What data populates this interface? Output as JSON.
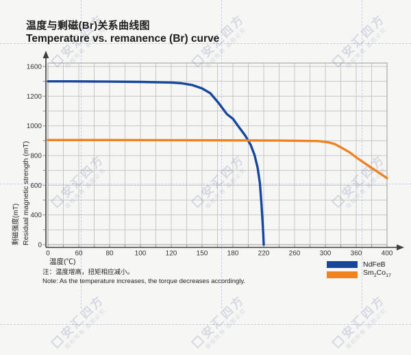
{
  "page": {
    "background": "#f6f6f4"
  },
  "title": {
    "zh": "温度与剩磁(Br)关系曲线图",
    "en": "Temperature vs. remanence (Br) curve"
  },
  "chart_data": {
    "type": "line",
    "title_zh": "温度与剩磁(Br)关系曲线图",
    "title_en": "Temperature vs. remanence (Br) curve",
    "x_axis": {
      "label": "温度(℃)",
      "ticks": [
        0,
        60,
        80,
        100,
        120,
        150,
        180,
        220,
        260,
        300,
        360,
        400
      ]
    },
    "y_axis": {
      "label_zh": "剩磁强度(mT)",
      "label_en": "Residual magnetic strength (mT)",
      "ticks": [
        0,
        400,
        600,
        800,
        1000,
        1200,
        1600
      ]
    },
    "grid": true,
    "legend_position": "bottom-right",
    "series": [
      {
        "name": "NdFeB",
        "color": "#17479d",
        "points": [
          [
            0,
            1400
          ],
          [
            40,
            1400
          ],
          [
            80,
            1396
          ],
          [
            100,
            1392
          ],
          [
            120,
            1384
          ],
          [
            130,
            1374
          ],
          [
            140,
            1352
          ],
          [
            150,
            1305
          ],
          [
            158,
            1240
          ],
          [
            166,
            1155
          ],
          [
            174,
            1080
          ],
          [
            180,
            1048
          ],
          [
            188,
            990
          ],
          [
            196,
            935
          ],
          [
            203,
            872
          ],
          [
            208,
            805
          ],
          [
            212,
            720
          ],
          [
            215,
            615
          ],
          [
            217,
            480
          ],
          [
            218.5,
            310
          ],
          [
            219.4,
            150
          ],
          [
            220,
            0
          ]
        ]
      },
      {
        "name": "Sm2Co17",
        "color": "#f08220",
        "points": [
          [
            0,
            905
          ],
          [
            80,
            905
          ],
          [
            160,
            903
          ],
          [
            240,
            901
          ],
          [
            290,
            898
          ],
          [
            305,
            890
          ],
          [
            318,
            878
          ],
          [
            332,
            852
          ],
          [
            348,
            820
          ],
          [
            360,
            788
          ],
          [
            372,
            745
          ],
          [
            385,
            700
          ],
          [
            400,
            648
          ]
        ]
      }
    ]
  },
  "legend": {
    "items": [
      {
        "label": "NdFeB",
        "color": "#17479d"
      },
      {
        "label": "Sm2Co17",
        "parts": [
          "Sm",
          "2",
          "Co",
          "17"
        ],
        "color": "#f08220"
      }
    ]
  },
  "note": {
    "zh": "注：温度增高，扭矩相应减小。",
    "en": "Note: As the temperature increases, the torque decreases accordingly."
  },
  "watermark": {
    "logo": "安汇四方",
    "subtitle": "版权所有 盗图必究",
    "color": "#8f9cc4"
  }
}
